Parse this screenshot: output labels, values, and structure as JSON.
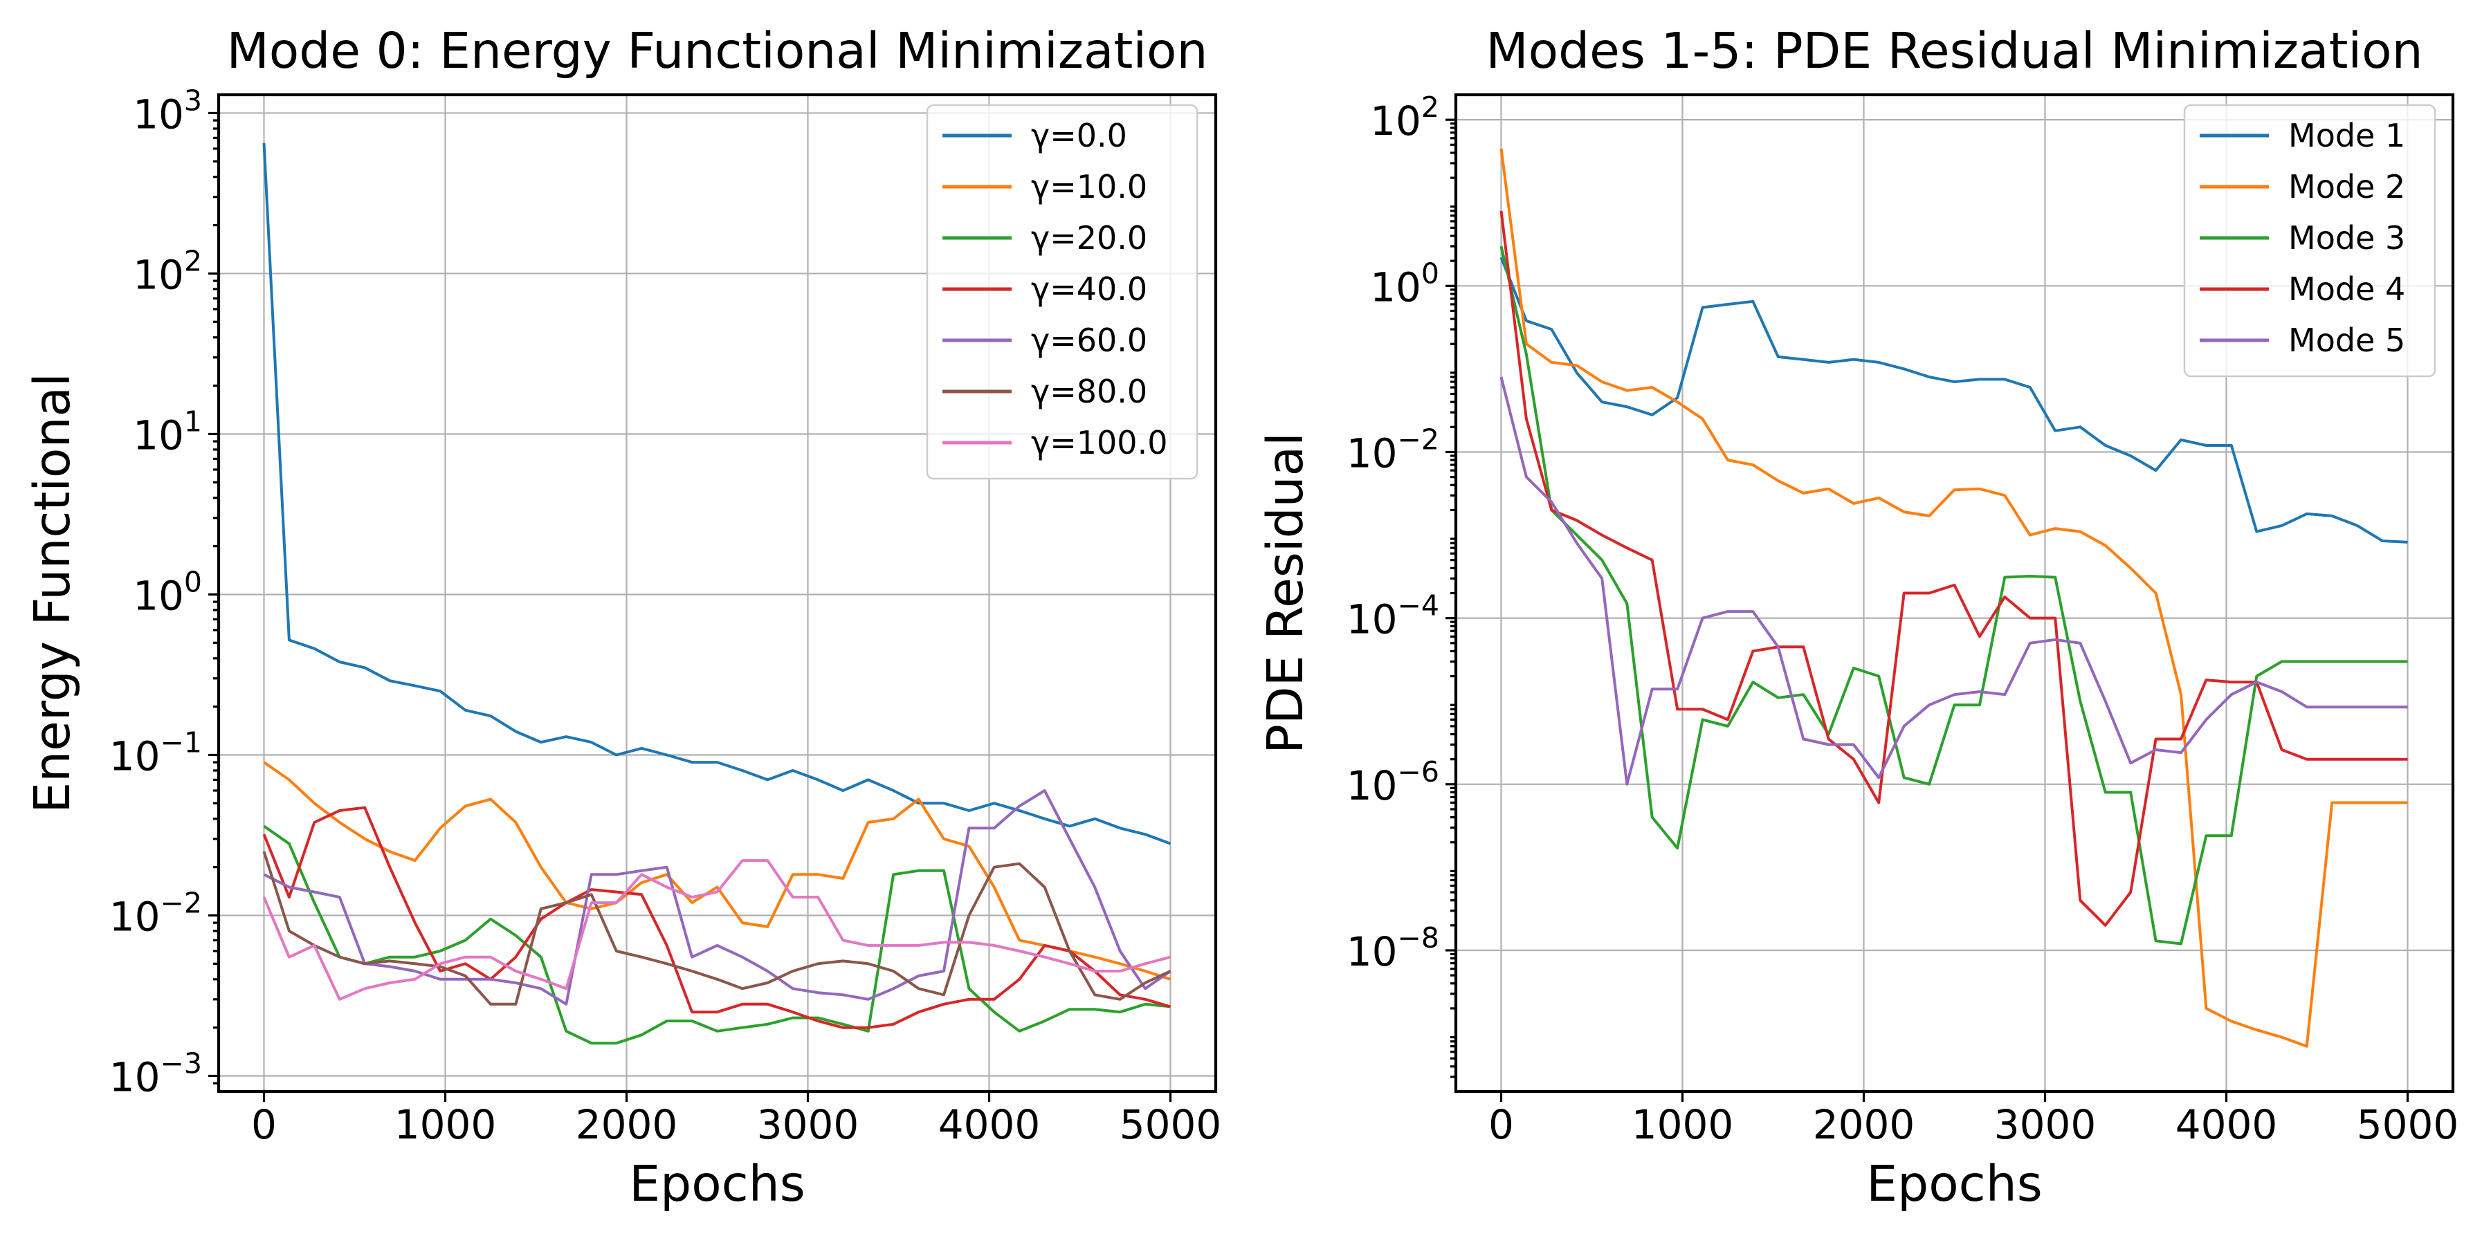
{
  "chart_data": [
    {
      "type": "line",
      "title": "Mode 0: Energy Functional Minimization",
      "xlabel": "Epochs",
      "ylabel": "Energy Functional",
      "yscale": "log",
      "xlim": [
        -250,
        5250
      ],
      "ylim": [
        0.0008,
        1300
      ],
      "xticks": [
        0,
        1000,
        2000,
        3000,
        4000,
        5000
      ],
      "xtick_labels": [
        "0",
        "1000",
        "2000",
        "3000",
        "4000",
        "5000"
      ],
      "yticks": [
        {
          "value": 0.001,
          "base": "10",
          "exp": "−3"
        },
        {
          "value": 0.01,
          "base": "10",
          "exp": "−2"
        },
        {
          "value": 0.1,
          "base": "10",
          "exp": "−1"
        },
        {
          "value": 1,
          "base": "10",
          "exp": "0"
        },
        {
          "value": 10,
          "base": "10",
          "exp": "1"
        },
        {
          "value": 100,
          "base": "10",
          "exp": "2"
        },
        {
          "value": 1000,
          "base": "10",
          "exp": "3"
        }
      ],
      "grid": true,
      "legend_position": "upper right",
      "x": [
        0,
        139,
        278,
        417,
        556,
        694,
        833,
        972,
        1111,
        1250,
        1389,
        1528,
        1667,
        1806,
        1944,
        2083,
        2222,
        2361,
        2500,
        2639,
        2778,
        2917,
        3056,
        3194,
        3333,
        3472,
        3611,
        3750,
        3889,
        4028,
        4167,
        4306,
        4444,
        4583,
        4722,
        4861,
        5000
      ],
      "series": [
        {
          "name": "γ=0.0",
          "color": "#1f77b4",
          "values": [
            650,
            0.52,
            0.46,
            0.38,
            0.35,
            0.29,
            0.27,
            0.25,
            0.19,
            0.175,
            0.14,
            0.12,
            0.13,
            0.12,
            0.1,
            0.11,
            0.1,
            0.09,
            0.09,
            0.08,
            0.07,
            0.08,
            0.07,
            0.06,
            0.07,
            0.06,
            0.05,
            0.05,
            0.045,
            0.05,
            0.045,
            0.04,
            0.036,
            0.04,
            0.035,
            0.032,
            0.028
          ]
        },
        {
          "name": "γ=10.0",
          "color": "#ff7f0e",
          "values": [
            0.09,
            0.07,
            0.05,
            0.038,
            0.03,
            0.025,
            0.022,
            0.035,
            0.048,
            0.053,
            0.038,
            0.02,
            0.012,
            0.011,
            0.012,
            0.016,
            0.018,
            0.012,
            0.015,
            0.009,
            0.0085,
            0.018,
            0.018,
            0.017,
            0.038,
            0.04,
            0.053,
            0.03,
            0.027,
            0.015,
            0.007,
            0.0065,
            0.006,
            0.0055,
            0.005,
            0.0045,
            0.004
          ]
        },
        {
          "name": "γ=20.0",
          "color": "#2ca02c",
          "values": [
            0.036,
            0.028,
            0.012,
            0.0055,
            0.005,
            0.0055,
            0.0055,
            0.006,
            0.007,
            0.0095,
            0.0075,
            0.0055,
            0.0019,
            0.0016,
            0.0016,
            0.0018,
            0.0022,
            0.0022,
            0.0019,
            0.002,
            0.0021,
            0.0023,
            0.0023,
            0.0021,
            0.0019,
            0.018,
            0.019,
            0.019,
            0.0035,
            0.0025,
            0.0019,
            0.0022,
            0.0026,
            0.0026,
            0.0025,
            0.0028,
            0.0027
          ]
        },
        {
          "name": "γ=40.0",
          "color": "#d62728",
          "values": [
            0.032,
            0.013,
            0.038,
            0.045,
            0.047,
            0.02,
            0.009,
            0.0045,
            0.005,
            0.004,
            0.0055,
            0.0095,
            0.012,
            0.0145,
            0.014,
            0.0135,
            0.0065,
            0.0025,
            0.0025,
            0.0028,
            0.0028,
            0.0025,
            0.0022,
            0.002,
            0.002,
            0.0021,
            0.0025,
            0.0028,
            0.003,
            0.003,
            0.004,
            0.0065,
            0.006,
            0.0045,
            0.0032,
            0.003,
            0.0027
          ]
        },
        {
          "name": "γ=60.0",
          "color": "#9467bd",
          "values": [
            0.018,
            0.015,
            0.014,
            0.013,
            0.005,
            0.0048,
            0.0045,
            0.004,
            0.004,
            0.004,
            0.0038,
            0.0035,
            0.0028,
            0.018,
            0.018,
            0.019,
            0.02,
            0.0055,
            0.0065,
            0.0055,
            0.0045,
            0.0035,
            0.0033,
            0.0032,
            0.003,
            0.0035,
            0.0042,
            0.0045,
            0.035,
            0.035,
            0.048,
            0.06,
            0.03,
            0.015,
            0.006,
            0.0035,
            0.0045
          ]
        },
        {
          "name": "γ=80.0",
          "color": "#8c564b",
          "values": [
            0.025,
            0.008,
            0.0065,
            0.0055,
            0.005,
            0.0052,
            0.005,
            0.0048,
            0.0042,
            0.0028,
            0.0028,
            0.011,
            0.012,
            0.0135,
            0.006,
            0.0055,
            0.005,
            0.0045,
            0.004,
            0.0035,
            0.0038,
            0.0045,
            0.005,
            0.0052,
            0.005,
            0.0045,
            0.0035,
            0.0032,
            0.01,
            0.02,
            0.021,
            0.015,
            0.006,
            0.0032,
            0.003,
            0.0038,
            0.0045
          ]
        },
        {
          "name": "γ=100.0",
          "color": "#e377c2",
          "values": [
            0.013,
            0.0055,
            0.0065,
            0.003,
            0.0035,
            0.0038,
            0.004,
            0.005,
            0.0055,
            0.0055,
            0.0045,
            0.004,
            0.0035,
            0.012,
            0.012,
            0.018,
            0.015,
            0.013,
            0.014,
            0.022,
            0.022,
            0.013,
            0.013,
            0.007,
            0.0065,
            0.0065,
            0.0065,
            0.0068,
            0.0068,
            0.0065,
            0.006,
            0.0055,
            0.005,
            0.0045,
            0.0045,
            0.005,
            0.0055
          ]
        }
      ]
    },
    {
      "type": "line",
      "title": "Modes 1-5: PDE Residual Minimization",
      "xlabel": "Epochs",
      "ylabel": "PDE Residual",
      "yscale": "log",
      "xlim": [
        -250,
        5250
      ],
      "ylim": [
        2e-10,
        200
      ],
      "xticks": [
        0,
        1000,
        2000,
        3000,
        4000,
        5000
      ],
      "xtick_labels": [
        "0",
        "1000",
        "2000",
        "3000",
        "4000",
        "5000"
      ],
      "yticks": [
        {
          "value": 1e-08,
          "base": "10",
          "exp": "−8"
        },
        {
          "value": 1e-06,
          "base": "10",
          "exp": "−6"
        },
        {
          "value": 0.0001,
          "base": "10",
          "exp": "−4"
        },
        {
          "value": 0.01,
          "base": "10",
          "exp": "−2"
        },
        {
          "value": 1,
          "base": "10",
          "exp": "0"
        },
        {
          "value": 100,
          "base": "10",
          "exp": "2"
        }
      ],
      "grid": true,
      "legend_position": "upper right",
      "x": [
        0,
        139,
        278,
        417,
        556,
        694,
        833,
        972,
        1111,
        1250,
        1389,
        1528,
        1667,
        1806,
        1944,
        2083,
        2222,
        2361,
        2500,
        2639,
        2778,
        2917,
        3056,
        3194,
        3333,
        3472,
        3611,
        3750,
        3889,
        4028,
        4167,
        4306,
        4444,
        4583,
        4722,
        4861,
        5000
      ],
      "series": [
        {
          "name": "Mode 1",
          "color": "#1f77b4",
          "values": [
            2.2,
            0.38,
            0.3,
            0.09,
            0.04,
            0.035,
            0.028,
            0.045,
            0.55,
            0.6,
            0.65,
            0.14,
            0.13,
            0.12,
            0.13,
            0.12,
            0.1,
            0.08,
            0.07,
            0.075,
            0.075,
            0.06,
            0.018,
            0.02,
            0.012,
            0.009,
            0.006,
            0.014,
            0.012,
            0.012,
            0.0011,
            0.0013,
            0.0018,
            0.0017,
            0.0013,
            0.00085,
            0.00082
          ]
        },
        {
          "name": "Mode 2",
          "color": "#ff7f0e",
          "values": [
            45,
            0.2,
            0.12,
            0.11,
            0.07,
            0.055,
            0.06,
            0.04,
            0.025,
            0.008,
            0.007,
            0.0045,
            0.0032,
            0.0036,
            0.0024,
            0.0028,
            0.0019,
            0.0017,
            0.0035,
            0.0036,
            0.003,
            0.001,
            0.0012,
            0.0011,
            0.00075,
            0.0004,
            0.0002,
            1.2e-05,
            2e-09,
            1.4e-09,
            1.1e-09,
            9e-10,
            7e-10,
            6e-07,
            6e-07,
            6e-07,
            6e-07
          ]
        },
        {
          "name": "Mode 3",
          "color": "#2ca02c",
          "values": [
            3,
            0.15,
            0.002,
            0.001,
            0.0005,
            0.00015,
            4e-07,
            1.7e-07,
            6e-06,
            5e-06,
            1.7e-05,
            1.1e-05,
            1.2e-05,
            4e-06,
            2.5e-05,
            2e-05,
            1.2e-06,
            1e-06,
            9e-06,
            9e-06,
            0.00031,
            0.00032,
            0.00031,
            1e-05,
            8e-07,
            8e-07,
            1.3e-08,
            1.2e-08,
            2.4e-07,
            2.4e-07,
            2e-05,
            3e-05,
            3e-05,
            3e-05,
            3e-05,
            3e-05,
            3e-05
          ]
        },
        {
          "name": "Mode 4",
          "color": "#d62728",
          "values": [
            8,
            0.025,
            0.002,
            0.0015,
            0.001,
            0.0007,
            0.0005,
            8e-06,
            8e-06,
            6e-06,
            4e-05,
            4.5e-05,
            4.5e-05,
            3.5e-06,
            2e-06,
            6e-07,
            0.0002,
            0.0002,
            0.00025,
            6e-05,
            0.00018,
            0.0001,
            0.0001,
            4e-08,
            2e-08,
            5e-08,
            3.5e-06,
            3.5e-06,
            1.8e-05,
            1.7e-05,
            1.7e-05,
            2.6e-06,
            2e-06,
            2e-06,
            2e-06,
            2e-06,
            2e-06
          ]
        },
        {
          "name": "Mode 5",
          "color": "#9467bd",
          "values": [
            0.08,
            0.005,
            0.0025,
            0.0008,
            0.0003,
            1e-06,
            1.4e-05,
            1.4e-05,
            0.0001,
            0.00012,
            0.00012,
            4.5e-05,
            3.5e-06,
            3e-06,
            3e-06,
            1.2e-06,
            5e-06,
            9e-06,
            1.2e-05,
            1.3e-05,
            1.2e-05,
            5e-05,
            5.5e-05,
            5e-05,
            1e-05,
            1.8e-06,
            2.6e-06,
            2.4e-06,
            6e-06,
            1.2e-05,
            1.7e-05,
            1.3e-05,
            8.5e-06,
            8.5e-06,
            8.5e-06,
            8.5e-06,
            8.5e-06
          ]
        }
      ]
    }
  ]
}
